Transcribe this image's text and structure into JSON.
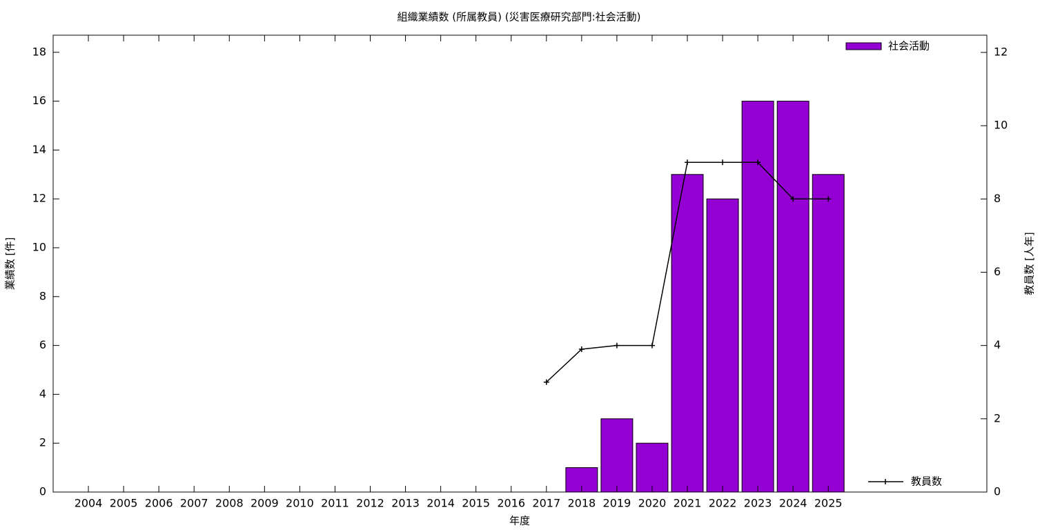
{
  "chart_data": {
    "type": "bar",
    "title": "組織業績数 (所属教員) (災害医療研究部門:社会活動)",
    "x_label": "年度",
    "y_label": "業績数 [件]",
    "y2_label": "教員数 [人年]",
    "x": [
      2017,
      2018,
      2019,
      2020,
      2021,
      2022,
      2023,
      2024,
      2025
    ],
    "xlim": [
      2003,
      2029.5
    ],
    "xticks": [
      2004,
      2005,
      2006,
      2007,
      2008,
      2009,
      2010,
      2011,
      2012,
      2013,
      2014,
      2015,
      2016,
      2017,
      2018,
      2019,
      2020,
      2021,
      2022,
      2023,
      2024,
      2025
    ],
    "ylim": [
      0,
      18.7
    ],
    "yticks": [
      0,
      2,
      4,
      6,
      8,
      10,
      12,
      14,
      16,
      18
    ],
    "y2lim": [
      0,
      12.47
    ],
    "y2ticks": [
      0,
      2,
      4,
      6,
      8,
      10,
      12
    ],
    "series": [
      {
        "name": "社会活動",
        "type": "bar",
        "color": "#9400d3",
        "values": [
          0,
          1,
          3,
          2,
          13,
          12,
          16,
          16,
          13
        ]
      },
      {
        "name": "教員数",
        "type": "line",
        "axis": "y2",
        "color": "#000000",
        "values": [
          3,
          3.9,
          4,
          4,
          9,
          9,
          9,
          8,
          8
        ]
      }
    ]
  }
}
